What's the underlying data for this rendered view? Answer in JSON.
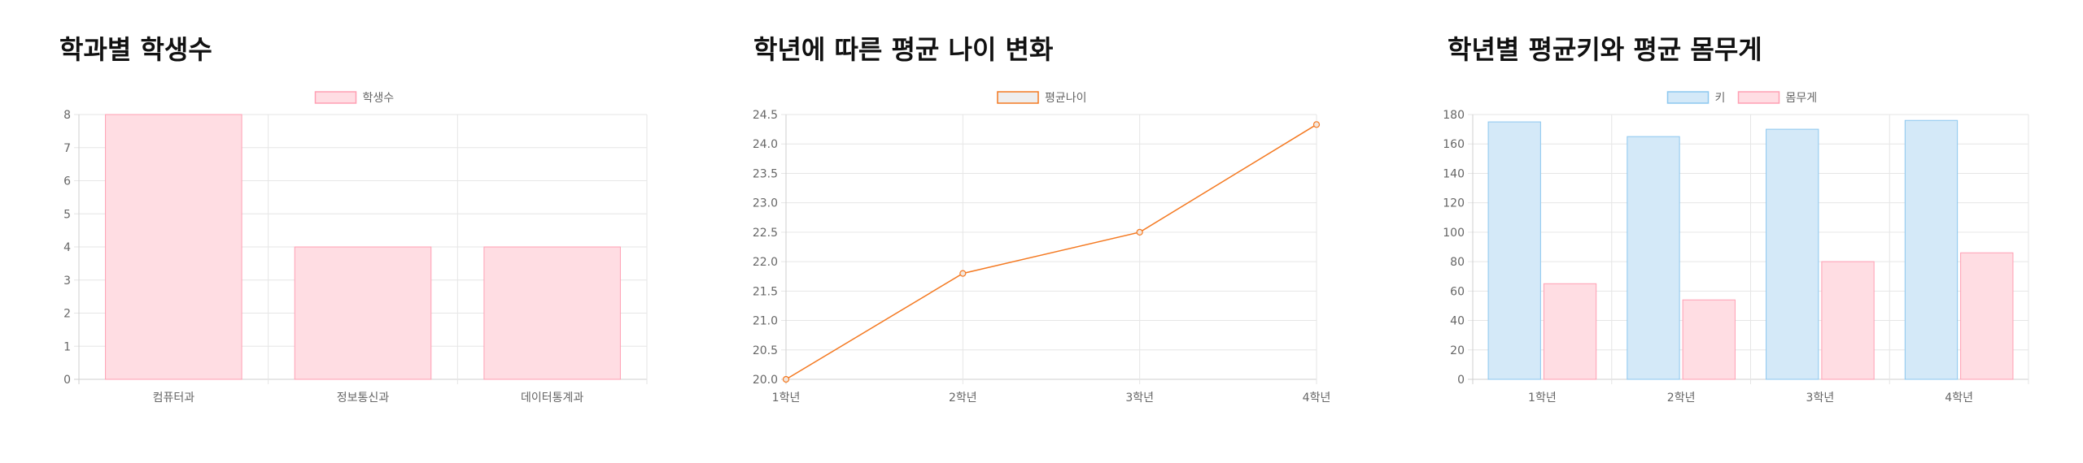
{
  "colors": {
    "pink_fill": "#ffdde3",
    "pink_stroke": "#ff9fb3",
    "blue_fill": "#d4e9f8",
    "blue_stroke": "#8cc7ef",
    "orange": "#f47921",
    "grid": "#e6e6e6",
    "text": "#666666"
  },
  "chart_data": [
    {
      "type": "bar",
      "title": "학과별 학생수",
      "categories": [
        "컴퓨터과",
        "정보통신과",
        "데이터통계과"
      ],
      "series": [
        {
          "name": "학생수",
          "values": [
            8,
            4,
            4
          ]
        }
      ],
      "yticks": [
        "0",
        "1",
        "2",
        "3",
        "4",
        "5",
        "6",
        "7",
        "8"
      ],
      "ylim": [
        0,
        8
      ],
      "grid": true,
      "legend": "top-center"
    },
    {
      "type": "line",
      "title": "학년에 따른 평균 나이 변화",
      "categories": [
        "1학년",
        "2학년",
        "3학년",
        "4학년"
      ],
      "series": [
        {
          "name": "평균나이",
          "values": [
            20.0,
            21.8,
            22.5,
            24.33
          ]
        }
      ],
      "yticks": [
        "20.0",
        "20.5",
        "21.0",
        "21.5",
        "22.0",
        "22.5",
        "23.0",
        "23.5",
        "24.0",
        "24.5"
      ],
      "ylim": [
        20.0,
        24.5
      ],
      "grid": true,
      "legend": "top-center"
    },
    {
      "type": "bar",
      "title": "학년별 평균키와 평균 몸무게",
      "categories": [
        "1학년",
        "2학년",
        "3학년",
        "4학년"
      ],
      "series": [
        {
          "name": "키",
          "values": [
            175,
            165,
            170,
            176
          ]
        },
        {
          "name": "몸무게",
          "values": [
            65,
            54,
            80,
            86
          ]
        }
      ],
      "yticks": [
        "0",
        "20",
        "40",
        "60",
        "80",
        "100",
        "120",
        "140",
        "160",
        "180"
      ],
      "ylim": [
        0,
        180
      ],
      "grid": true,
      "legend": "top-center"
    }
  ]
}
